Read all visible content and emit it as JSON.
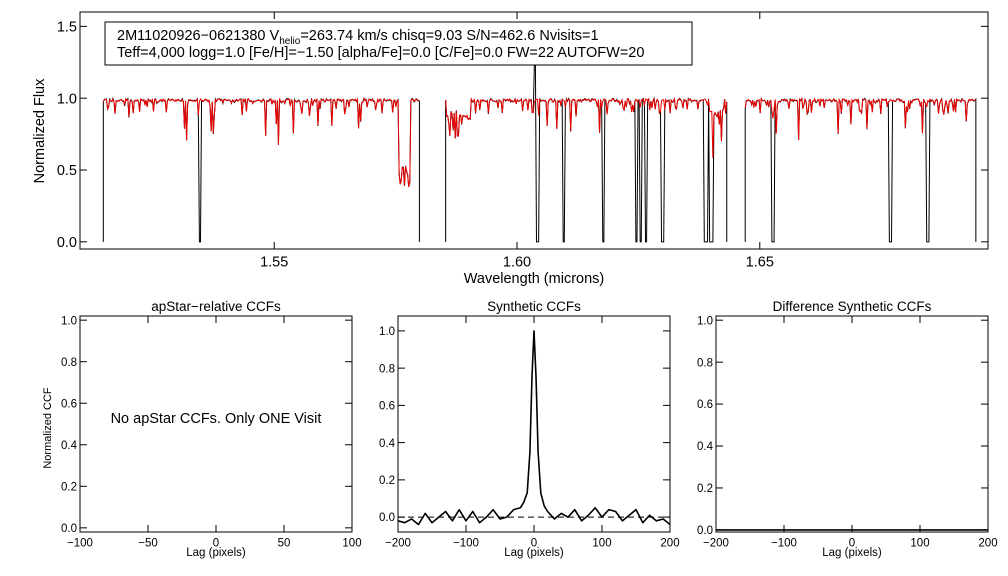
{
  "chart_data": [
    {
      "type": "line",
      "panel": "spectrum",
      "info_line1": {
        "star": "2M11020926−0621380",
        "v_label": "V",
        "v_sub": "helio",
        "v_value": "=263.74 km/s",
        "rest": "chisq=9.03  S/N=462.6  Nvisits=1"
      },
      "info_line2": "Teff=4,000 logg=1.0 [Fe/H]=−1.50 [alpha/Fe]=0.0 [C/Fe]=0.0 FW=22 AUTOFW=20",
      "xlabel": "Wavelength (microns)",
      "ylabel": "Normalized Flux",
      "xlim": [
        1.51,
        1.697
      ],
      "ylim": [
        -0.05,
        1.6
      ],
      "xticks": [
        1.55,
        1.6,
        1.65
      ],
      "xtick_labels": [
        "1.55",
        "1.60",
        "1.65"
      ],
      "yticks": [
        0,
        0.5,
        1.0,
        1.5
      ],
      "ytick_labels": [
        "0.0",
        "0.5",
        "1.0",
        "1.5"
      ],
      "chips": [
        [
          1.5148,
          1.5799
        ],
        [
          1.5853,
          1.6432
        ],
        [
          1.647,
          1.6945
        ]
      ],
      "series": [
        {
          "color": "#000000",
          "style": "observed",
          "deep_lines": [
            1.5347,
            1.5348,
            1.6039,
            1.6043,
            1.6096,
            1.6177,
            1.6245,
            1.6255,
            1.6266,
            1.63,
            1.6387,
            1.6392,
            1.6399,
            1.6403,
            1.6527,
            1.6529,
            1.6767,
            1.6771,
            1.6844,
            1.6848
          ]
        },
        {
          "color": "#ee0000",
          "style": "model"
        }
      ]
    },
    {
      "type": "line",
      "panel": "apstar-ccf",
      "title": "apStar−relative CCFs",
      "xlabel": "Lag (pixels)",
      "ylabel": "Normalized CCF",
      "xlim": [
        -100,
        100
      ],
      "ylim": [
        -0.02,
        1.02
      ],
      "xticks": [
        -100,
        -50,
        0,
        50,
        100
      ],
      "xtick_labels": [
        "−100",
        "−50",
        "0",
        "50",
        "100"
      ],
      "yticks": [
        0,
        0.2,
        0.4,
        0.6,
        0.8,
        1.0
      ],
      "ytick_labels": [
        "0.0",
        "0.2",
        "0.4",
        "0.6",
        "0.8",
        "1.0"
      ],
      "annotation": "No apStar CCFs.  Only ONE Visit"
    },
    {
      "type": "line",
      "panel": "synthetic-ccf",
      "title": "Synthetic CCFs",
      "xlabel": "Lag (pixels)",
      "xlim": [
        -200,
        200
      ],
      "ylim": [
        -0.08,
        1.08
      ],
      "xticks": [
        -200,
        -100,
        0,
        100,
        200
      ],
      "xtick_labels": [
        "−200",
        "−100",
        "0",
        "100",
        "200"
      ],
      "yticks": [
        0,
        0.2,
        0.4,
        0.6,
        0.8,
        1.0
      ],
      "ytick_labels": [
        "0.0",
        "0.2",
        "0.4",
        "0.6",
        "0.8",
        "1.0"
      ],
      "baseline": 0.0,
      "series": [
        {
          "x": [
            -200,
            -190,
            -180,
            -170,
            -160,
            -150,
            -140,
            -130,
            -120,
            -110,
            -100,
            -90,
            -80,
            -70,
            -60,
            -50,
            -40,
            -30,
            -20,
            -15,
            -10,
            -6,
            -3,
            0,
            3,
            6,
            10,
            15,
            20,
            30,
            40,
            50,
            60,
            70,
            80,
            90,
            100,
            110,
            120,
            130,
            140,
            150,
            160,
            170,
            180,
            190,
            200
          ],
          "y": [
            -0.02,
            -0.03,
            -0.01,
            -0.04,
            0.02,
            -0.03,
            0.0,
            0.03,
            -0.02,
            0.04,
            -0.02,
            0.03,
            -0.03,
            0.0,
            0.04,
            -0.01,
            0.0,
            0.04,
            0.05,
            0.08,
            0.13,
            0.35,
            0.75,
            1.0,
            0.75,
            0.35,
            0.13,
            0.06,
            0.03,
            -0.01,
            0.02,
            0.0,
            0.04,
            -0.02,
            0.01,
            0.05,
            0.0,
            0.04,
            0.03,
            -0.02,
            0.01,
            0.04,
            -0.03,
            0.01,
            -0.02,
            -0.01,
            -0.04
          ]
        }
      ]
    },
    {
      "type": "line",
      "panel": "difference-ccf",
      "title": "Difference Synthetic CCFs",
      "xlabel": "Lag (pixels)",
      "xlim": [
        -200,
        200
      ],
      "ylim": [
        -0.01,
        1.02
      ],
      "xticks": [
        -200,
        -100,
        0,
        100,
        200
      ],
      "xtick_labels": [
        "−200",
        "−100",
        "0",
        "100",
        "200"
      ],
      "yticks": [
        0,
        0.2,
        0.4,
        0.6,
        0.8,
        1.0
      ],
      "ytick_labels": [
        "0.0",
        "0.2",
        "0.4",
        "0.6",
        "0.8",
        "1.0"
      ],
      "series": [
        {
          "x": [
            -200,
            200
          ],
          "y": [
            0,
            0
          ]
        }
      ]
    }
  ]
}
